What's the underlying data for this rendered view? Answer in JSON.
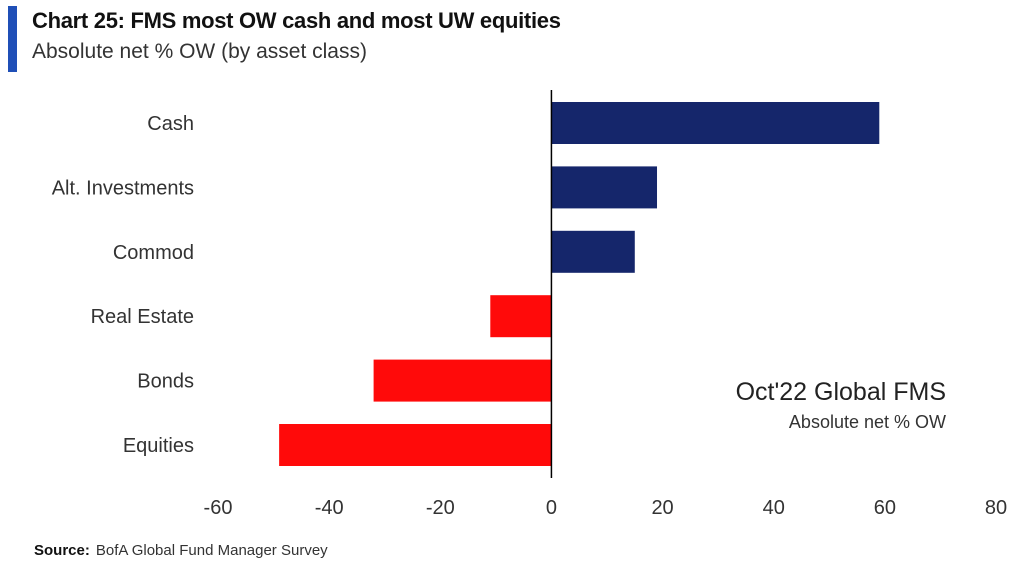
{
  "header": {
    "title": "Chart 25: FMS most OW cash and most UW equities",
    "subtitle": "Absolute net % OW (by asset class)"
  },
  "footer": {
    "source_label": "Source:",
    "source_text": "BofA Global Fund Manager Survey"
  },
  "colors": {
    "accent": "#1f4fb7",
    "positive": "#15266b",
    "negative": "#ff0a0a",
    "axis": "#000000",
    "text": "#333333"
  },
  "chart_data": {
    "type": "bar",
    "orientation": "horizontal",
    "categories": [
      "Cash",
      "Alt. Investments",
      "Commod",
      "Real Estate",
      "Bonds",
      "Equities"
    ],
    "values": [
      59,
      19,
      15,
      -11,
      -32,
      -49
    ],
    "xlim": [
      -60,
      80
    ],
    "xticks": [
      -60,
      -40,
      -20,
      0,
      20,
      40,
      60,
      80
    ],
    "grid": false,
    "annotation": {
      "title": "Oct'22 Global FMS",
      "subtitle": "Absolute net % OW"
    }
  }
}
